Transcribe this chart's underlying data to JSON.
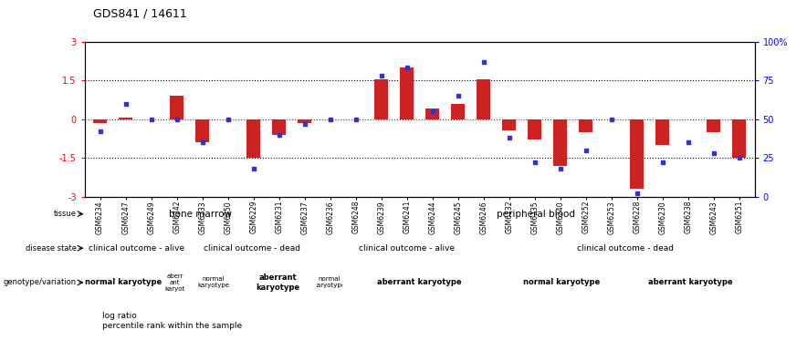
{
  "title": "GDS841 / 14611",
  "samples": [
    "GSM6234",
    "GSM6247",
    "GSM6249",
    "GSM6242",
    "GSM6233",
    "GSM6250",
    "GSM6229",
    "GSM6231",
    "GSM6237",
    "GSM6236",
    "GSM6248",
    "GSM6239",
    "GSM6241",
    "GSM6244",
    "GSM6245",
    "GSM6246",
    "GSM6232",
    "GSM6235",
    "GSM6240",
    "GSM6252",
    "GSM6253",
    "GSM6228",
    "GSM6230",
    "GSM6238",
    "GSM6243",
    "GSM6251"
  ],
  "log_ratio": [
    -0.15,
    0.05,
    0.0,
    0.9,
    -0.9,
    0.0,
    -1.5,
    -0.6,
    -0.15,
    0.0,
    0.0,
    1.55,
    2.0,
    0.4,
    0.6,
    1.55,
    -0.45,
    -0.8,
    -1.8,
    -0.5,
    0.0,
    -2.7,
    -1.0,
    0.0,
    -0.5,
    -1.5
  ],
  "percentile": [
    42,
    60,
    50,
    50,
    35,
    50,
    18,
    40,
    47,
    50,
    50,
    78,
    83,
    55,
    65,
    87,
    38,
    22,
    18,
    30,
    50,
    2,
    22,
    35,
    28,
    25
  ],
  "bar_color": "#CC2222",
  "dot_color": "#3333CC",
  "hline0_color": "#CC0000",
  "hline_pm_color": "#000000",
  "tissue_blocks": [
    {
      "label": "bone marrow",
      "start": 0,
      "end": 9,
      "color": "#99DD99"
    },
    {
      "label": "peripheral blood",
      "start": 9,
      "end": 26,
      "color": "#55BB55"
    }
  ],
  "disease_blocks": [
    {
      "label": "clinical outcome - alive",
      "start": 0,
      "end": 4,
      "color": "#BBBBEE"
    },
    {
      "label": "clinical outcome - dead",
      "start": 4,
      "end": 9,
      "color": "#7777BB"
    },
    {
      "label": "clinical outcome - alive",
      "start": 9,
      "end": 16,
      "color": "#BBBBEE"
    },
    {
      "label": "clinical outcome - dead",
      "start": 16,
      "end": 26,
      "color": "#7777BB"
    }
  ],
  "geno_blocks": [
    {
      "label": "normal karyotype",
      "start": 0,
      "end": 3,
      "color": "#FFCCCC"
    },
    {
      "label": "aberr\nant\nkaryot",
      "start": 3,
      "end": 4,
      "color": "#DD8888"
    },
    {
      "label": "normal\nkaryotype",
      "start": 4,
      "end": 6,
      "color": "#FFCCCC"
    },
    {
      "label": "aberrant\nkaryotype",
      "start": 6,
      "end": 9,
      "color": "#DD8888"
    },
    {
      "label": "normal\nkaryotype",
      "start": 9,
      "end": 10,
      "color": "#FFCCCC"
    },
    {
      "label": "aberrant karyotype",
      "start": 10,
      "end": 16,
      "color": "#DD8888"
    },
    {
      "label": "normal karyotype",
      "start": 16,
      "end": 21,
      "color": "#FFCCCC"
    },
    {
      "label": "aberrant karyotype",
      "start": 21,
      "end": 26,
      "color": "#DD8888"
    }
  ],
  "row_labels": [
    "tissue",
    "disease state",
    "genotype/variation"
  ],
  "legend_items": [
    {
      "color": "#CC2222",
      "label": "log ratio"
    },
    {
      "color": "#3333CC",
      "label": "percentile rank within the sample"
    }
  ]
}
